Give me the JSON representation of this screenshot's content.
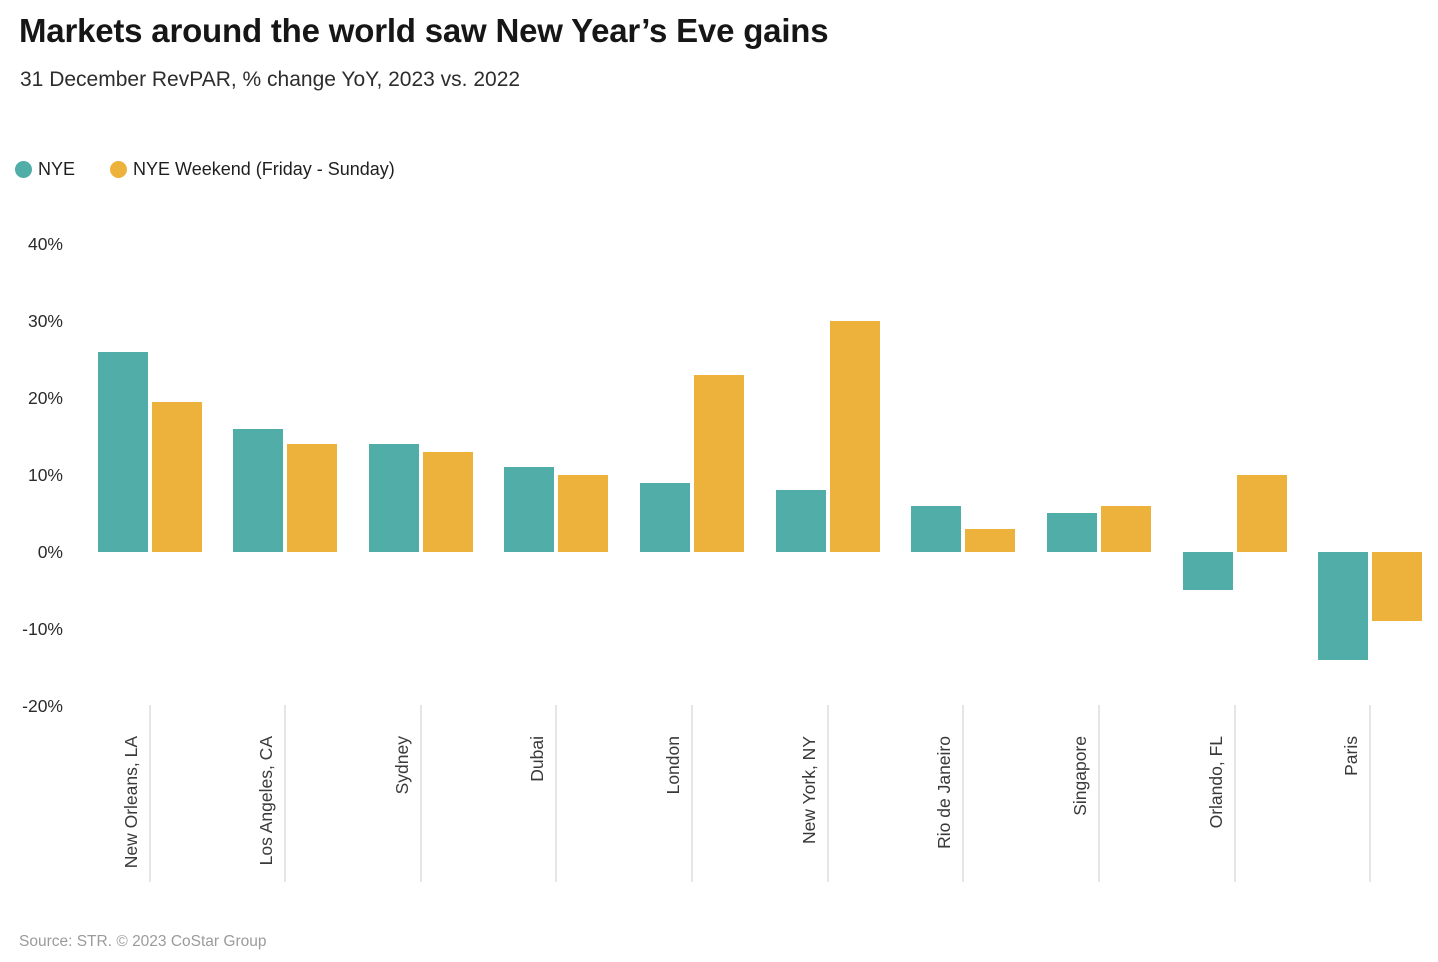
{
  "header": {
    "title": "Markets around the world saw New Year’s Eve gains",
    "subtitle": "31 December RevPAR, % change YoY, 2023 vs. 2022"
  },
  "legend": [
    {
      "label": "NYE",
      "color": "#50ADA8"
    },
    {
      "label": "NYE Weekend (Friday - Sunday)",
      "color": "#ECB23C"
    }
  ],
  "footer": {
    "source": "Source: STR. © 2023 CoStar Group"
  },
  "chart_data": {
    "type": "bar",
    "title": "Markets around the world saw New Year’s Eve gains",
    "subtitle": "31 December RevPAR, % change YoY, 2023 vs. 2022",
    "categories": [
      "New Orleans, LA",
      "Los Angeles, CA",
      "Sydney",
      "Dubai",
      "London",
      "New York, NY",
      "Rio de Janeiro",
      "Singapore",
      "Orlando, FL",
      "Paris"
    ],
    "series": [
      {
        "name": "NYE",
        "color": "#50ADA8",
        "values": [
          26,
          16,
          14,
          11,
          9,
          8,
          6,
          5,
          -5,
          -14
        ]
      },
      {
        "name": "NYE Weekend (Friday - Sunday)",
        "color": "#ECB23C",
        "values": [
          19.5,
          14,
          13,
          10,
          23,
          30,
          3,
          6,
          10,
          -9
        ]
      }
    ],
    "xlabel": "",
    "ylabel": "",
    "ylim": [
      -20,
      40
    ],
    "yticks": [
      40,
      30,
      20,
      10,
      0,
      -10,
      -20
    ],
    "ytick_suffix": "%",
    "grid": false,
    "legend_position": "top-left"
  }
}
